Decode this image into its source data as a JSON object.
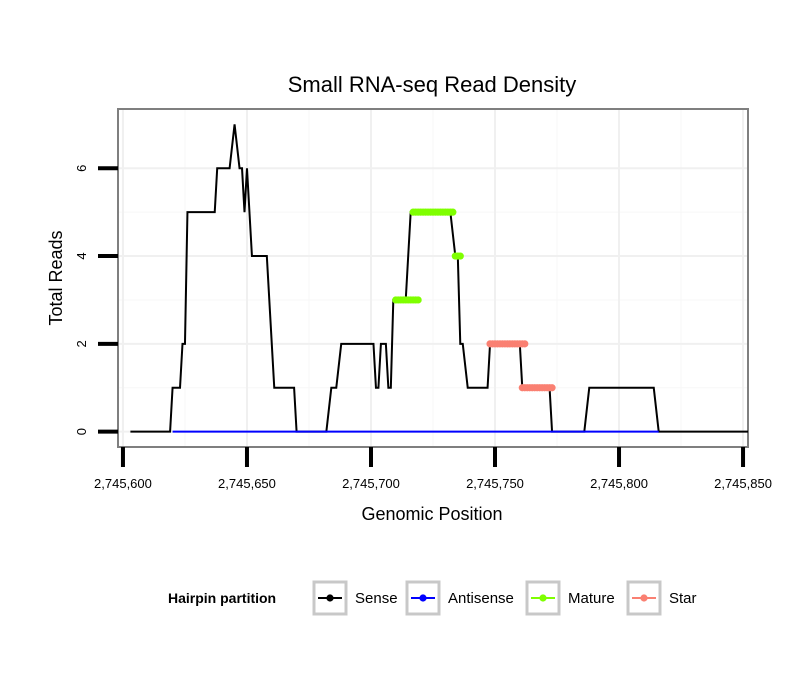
{
  "chart_data": {
    "type": "line",
    "title": "Small RNA-seq Read Density",
    "xlabel": "Genomic Position",
    "ylabel": "Total Reads",
    "xlim": [
      2745598,
      2745852
    ],
    "ylim": [
      -0.35,
      7.35
    ],
    "xticks": [
      2745600,
      2745650,
      2745700,
      2745750,
      2745800,
      2745850
    ],
    "xtick_labels": [
      "2,745,600",
      "2,745,650",
      "2,745,700",
      "2,745,750",
      "2,745,800",
      "2,745,850"
    ],
    "yticks": [
      0,
      2,
      4,
      6
    ],
    "ytick_labels": [
      "0",
      "2",
      "4",
      "6"
    ],
    "grid": true,
    "legend": {
      "title": "Hairpin partition",
      "position": "bottom",
      "entries": [
        {
          "name": "Sense",
          "color": "#000000"
        },
        {
          "name": "Antisense",
          "color": "#0000ff"
        },
        {
          "name": "Mature",
          "color": "#7fff00"
        },
        {
          "name": "Star",
          "color": "#fa8072"
        }
      ]
    },
    "series": [
      {
        "name": "Sense",
        "color": "#000000",
        "style": "line",
        "points": [
          [
            2745603,
            0
          ],
          [
            2745619,
            0
          ],
          [
            2745620,
            1
          ],
          [
            2745623,
            1
          ],
          [
            2745624,
            2
          ],
          [
            2745625,
            2
          ],
          [
            2745626,
            5
          ],
          [
            2745637,
            5
          ],
          [
            2745638,
            6
          ],
          [
            2745643,
            6
          ],
          [
            2745645,
            7
          ],
          [
            2745647,
            6
          ],
          [
            2745648,
            6
          ],
          [
            2745649,
            5
          ],
          [
            2745650,
            6
          ],
          [
            2745652,
            4
          ],
          [
            2745658,
            4
          ],
          [
            2745661,
            1
          ],
          [
            2745669,
            1
          ],
          [
            2745670,
            0
          ],
          [
            2745682,
            0
          ],
          [
            2745684,
            1
          ],
          [
            2745686,
            1
          ],
          [
            2745688,
            2
          ],
          [
            2745701,
            2
          ],
          [
            2745702,
            1
          ],
          [
            2745703,
            1
          ],
          [
            2745704,
            2
          ],
          [
            2745706,
            2
          ],
          [
            2745707,
            1
          ],
          [
            2745708,
            1
          ],
          [
            2745709,
            3
          ],
          [
            2745714,
            3
          ],
          [
            2745716,
            5
          ],
          [
            2745732,
            5
          ],
          [
            2745734,
            4
          ],
          [
            2745735,
            4
          ],
          [
            2745736,
            2
          ],
          [
            2745737,
            2
          ],
          [
            2745739,
            1
          ],
          [
            2745747,
            1
          ],
          [
            2745748,
            2
          ],
          [
            2745760,
            2
          ],
          [
            2745761,
            1
          ],
          [
            2745772,
            1
          ],
          [
            2745773,
            0
          ],
          [
            2745786,
            0
          ],
          [
            2745788,
            1
          ],
          [
            2745814,
            1
          ],
          [
            2745816,
            0
          ],
          [
            2745852,
            0
          ]
        ]
      },
      {
        "name": "Antisense",
        "color": "#0000ff",
        "style": "line",
        "points": [
          [
            2745620,
            0
          ],
          [
            2745816,
            0
          ]
        ]
      },
      {
        "name": "Mature",
        "color": "#7fff00",
        "style": "points",
        "segments": [
          {
            "x_from": 2745710,
            "x_to": 2745719,
            "y": 3
          },
          {
            "x_from": 2745717,
            "x_to": 2745733,
            "y": 5
          },
          {
            "x_from": 2745734,
            "x_to": 2745736,
            "y": 4
          }
        ]
      },
      {
        "name": "Star",
        "color": "#fa8072",
        "style": "points",
        "segments": [
          {
            "x_from": 2745748,
            "x_to": 2745762,
            "y": 2
          },
          {
            "x_from": 2745761,
            "x_to": 2745773,
            "y": 1
          }
        ]
      }
    ]
  }
}
